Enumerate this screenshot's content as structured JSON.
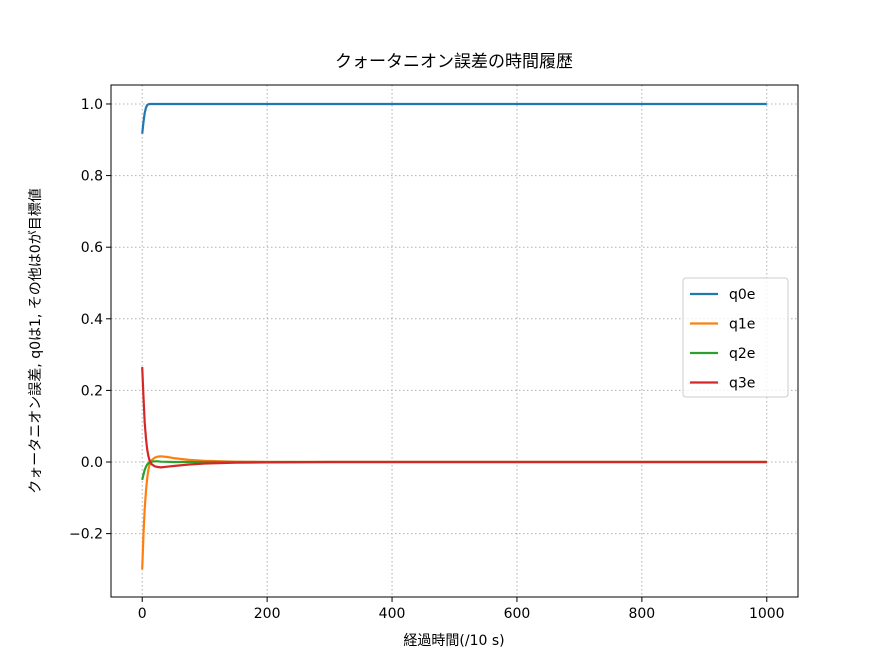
{
  "chart_data": {
    "type": "line",
    "title": "クォータニオン誤差の時間履歴",
    "xlabel": "経過時間(/10 s)",
    "ylabel": "クォータニオン誤差, q0は1, その他は0が目標値",
    "xlim": [
      -50,
      1050
    ],
    "ylim": [
      -0.377,
      1.053
    ],
    "xticks": [
      0,
      200,
      400,
      600,
      800,
      1000
    ],
    "yticks": [
      -0.2,
      0.0,
      0.2,
      0.4,
      0.6,
      0.8,
      1.0
    ],
    "ytick_labels": [
      "−0.2",
      "0.0",
      "0.2",
      "0.4",
      "0.6",
      "0.8",
      "1.0"
    ],
    "grid": true,
    "legend_position": "center-right",
    "x": [
      0,
      2,
      4,
      6,
      8,
      10,
      12,
      15,
      20,
      25,
      30,
      40,
      50,
      75,
      100,
      150,
      200,
      300,
      500,
      1000
    ],
    "series": [
      {
        "name": "q0e",
        "color": "#1f77b4",
        "values": [
          0.917,
          0.95,
          0.975,
          0.99,
          0.997,
          0.999,
          1.0,
          1.0,
          1.0,
          1.0,
          1.0,
          1.0,
          1.0,
          1.0,
          1.0,
          1.0,
          1.0,
          1.0,
          1.0,
          1.0
        ]
      },
      {
        "name": "q1e",
        "color": "#ff7f0e",
        "values": [
          -0.3,
          -0.2,
          -0.13,
          -0.08,
          -0.045,
          -0.02,
          -0.005,
          0.005,
          0.012,
          0.015,
          0.016,
          0.014,
          0.011,
          0.006,
          0.003,
          0.001,
          0.0,
          0.0,
          0.0,
          0.0
        ]
      },
      {
        "name": "q2e",
        "color": "#2ca02c",
        "values": [
          -0.05,
          -0.035,
          -0.022,
          -0.013,
          -0.007,
          -0.003,
          -0.001,
          0.001,
          0.002,
          0.002,
          0.001,
          0.0005,
          0.0,
          0.0,
          0.0,
          0.0,
          0.0,
          0.0,
          0.0,
          0.0
        ]
      },
      {
        "name": "q3e",
        "color": "#d62728",
        "values": [
          0.265,
          0.18,
          0.11,
          0.065,
          0.035,
          0.015,
          0.003,
          -0.006,
          -0.012,
          -0.014,
          -0.015,
          -0.013,
          -0.011,
          -0.007,
          -0.004,
          -0.002,
          -0.001,
          0.0,
          0.0,
          0.0
        ]
      }
    ]
  }
}
